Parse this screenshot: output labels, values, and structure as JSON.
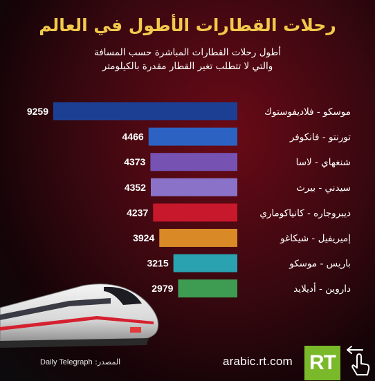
{
  "title": "رحلات القطارات الأطول في العالم",
  "subtitle_line1": "أطول رحلات القطارات المباشرة حسب المسافة",
  "subtitle_line2": "والتي لا تتطلب تغير القطار مقدرة بالكيلومتر",
  "chart_data": {
    "type": "bar",
    "orientation": "horizontal",
    "title": "رحلات القطارات الأطول في العالم",
    "unit": "كيلومتر",
    "categories": [
      "موسكو - فلاديفوستوك",
      "تورنتو - فانكوفر",
      "شنغهاي - لاسا",
      "سيدني - بيرث",
      "ديبروجاره - كانياكوماري",
      "إميريفيل - شيكاغو",
      "باريس - موسكو",
      "داروين - أديلايد"
    ],
    "values": [
      9259,
      4466,
      4373,
      4352,
      4237,
      3924,
      3215,
      2979
    ],
    "colors": [
      "#1d3f93",
      "#2c63c2",
      "#7652b3",
      "#8a72c8",
      "#c8182b",
      "#d98a26",
      "#2aa2b0",
      "#3e9b52"
    ],
    "legend": "none",
    "grid": false
  },
  "footer": {
    "source_label": "المصدر:",
    "source_value": "Daily Telegraph",
    "website": "arabic.rt.com",
    "logo_text": "RT"
  },
  "icons": [
    "train-image",
    "rt-logo-icon",
    "hand-pointer-icon"
  ]
}
